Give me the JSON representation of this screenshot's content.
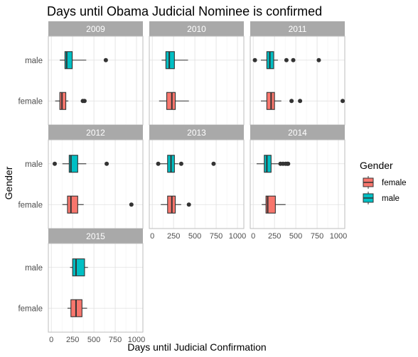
{
  "chart_data": {
    "type": "boxplot",
    "title": "Days until Obama Judicial Nominee is confirmed",
    "xlabel": "Days until Judicial Confirmation",
    "ylabel": "Gender",
    "categories": [
      "male",
      "female"
    ],
    "xlim": [
      0,
      1050
    ],
    "xticks": [
      0,
      250,
      500,
      750,
      1000
    ],
    "legend": {
      "title": "Gender",
      "position": "right",
      "entries": [
        {
          "name": "female",
          "color": "#F8766D"
        },
        {
          "name": "male",
          "color": "#00BFC4"
        }
      ]
    },
    "grid": true,
    "panels": [
      {
        "label": "2009",
        "male": {
          "whisker_low": 100,
          "q1": 160,
          "median": 180,
          "q3": 245,
          "whisker_high": 410,
          "outliers": [
            640
          ]
        },
        "female": {
          "whisker_low": 45,
          "q1": 100,
          "median": 125,
          "q3": 170,
          "whisker_high": 200,
          "outliers": [
            370,
            390
          ]
        }
      },
      {
        "label": "2010",
        "male": {
          "whisker_low": 110,
          "q1": 160,
          "median": 200,
          "q3": 260,
          "whisker_high": 420,
          "outliers": []
        },
        "female": {
          "whisker_low": 80,
          "q1": 170,
          "median": 230,
          "q3": 270,
          "whisker_high": 430,
          "outliers": []
        }
      },
      {
        "label": "2011",
        "male": {
          "whisker_low": 90,
          "q1": 160,
          "median": 195,
          "q3": 240,
          "whisker_high": 290,
          "outliers": [
            20,
            390,
            470,
            770
          ]
        },
        "female": {
          "whisker_low": 90,
          "q1": 160,
          "median": 210,
          "q3": 250,
          "whisker_high": 330,
          "outliers": [
            450,
            550,
            1050
          ]
        }
      },
      {
        "label": "2012",
        "male": {
          "whisker_low": 130,
          "q1": 210,
          "median": 230,
          "q3": 310,
          "whisker_high": 410,
          "outliers": [
            40,
            650
          ]
        },
        "female": {
          "whisker_low": 130,
          "q1": 190,
          "median": 230,
          "q3": 310,
          "whisker_high": 380,
          "outliers": [
            940
          ]
        }
      },
      {
        "label": "2013",
        "male": {
          "whisker_low": 90,
          "q1": 180,
          "median": 220,
          "q3": 260,
          "whisker_high": 310,
          "outliers": [
            70,
            340,
            720
          ]
        },
        "female": {
          "whisker_low": 100,
          "q1": 180,
          "median": 230,
          "q3": 270,
          "whisker_high": 340,
          "outliers": [
            430
          ]
        }
      },
      {
        "label": "2014",
        "male": {
          "whisker_low": 40,
          "q1": 130,
          "median": 160,
          "q3": 210,
          "whisker_high": 310,
          "outliers": [
            320,
            350,
            380,
            400,
            410
          ]
        },
        "female": {
          "whisker_low": 100,
          "q1": 150,
          "median": 170,
          "q3": 260,
          "whisker_high": 380,
          "outliers": []
        }
      },
      {
        "label": "2015",
        "male": {
          "whisker_low": 220,
          "q1": 250,
          "median": 290,
          "q3": 390,
          "whisker_high": 430,
          "outliers": []
        },
        "female": {
          "whisker_low": 190,
          "q1": 230,
          "median": 290,
          "q3": 360,
          "whisker_high": 420,
          "outliers": []
        }
      }
    ]
  }
}
